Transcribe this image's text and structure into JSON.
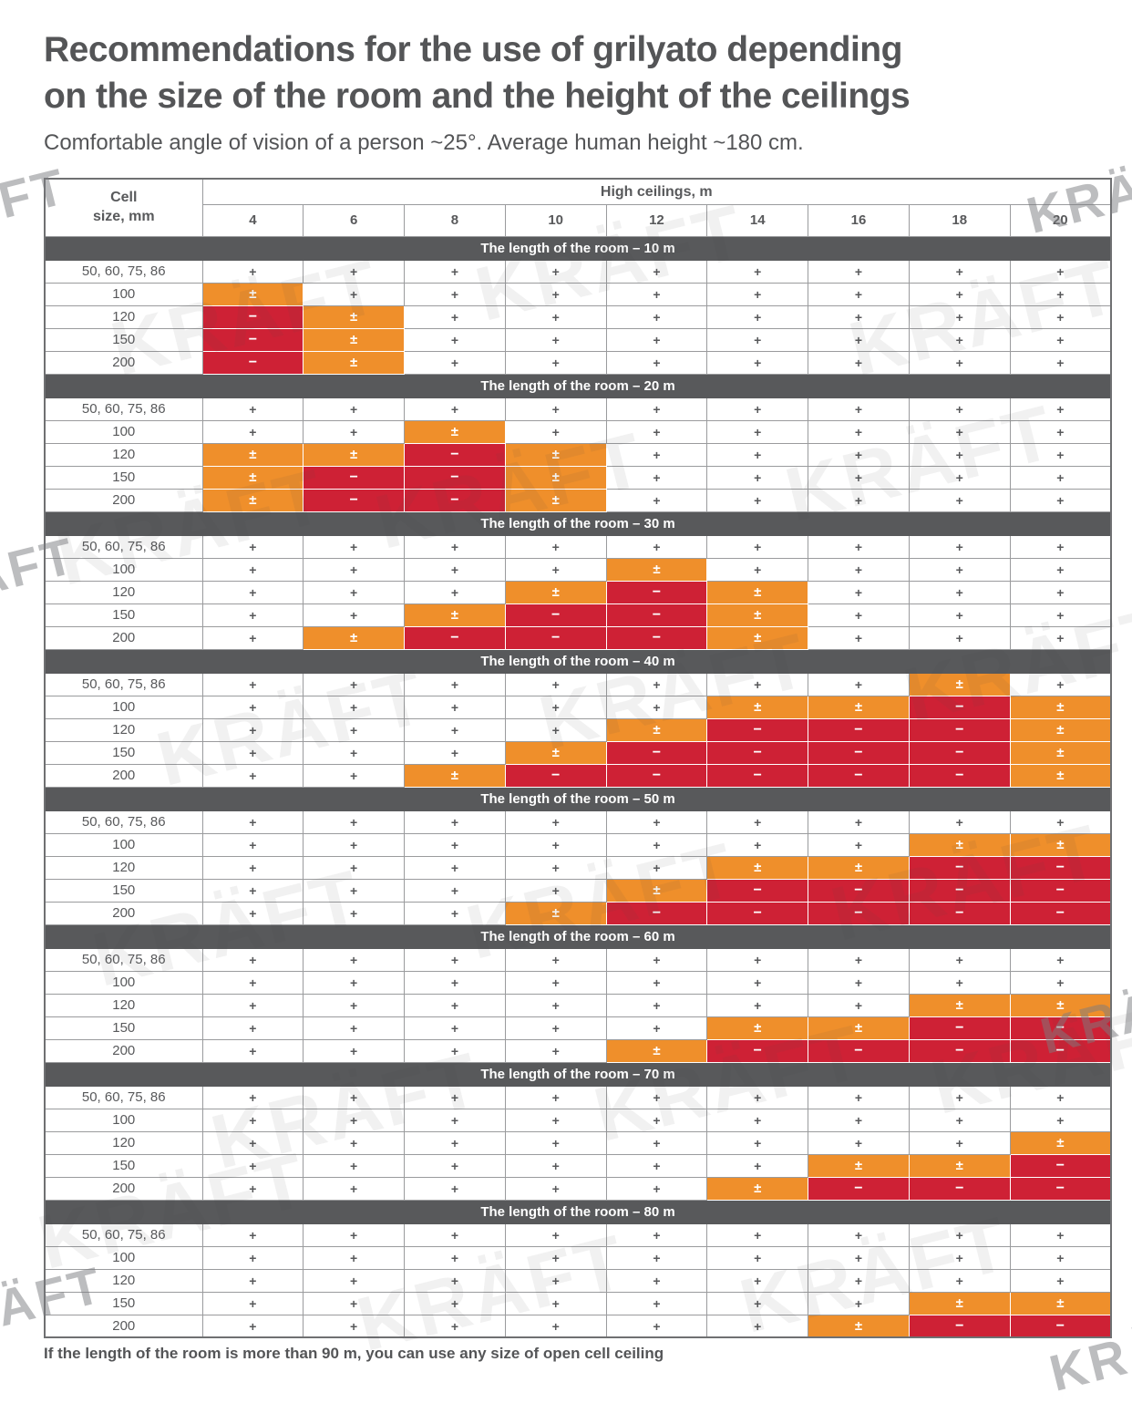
{
  "page": {
    "title_line1": "Recommendations for the use of grilyato depending",
    "title_line2": "on the size of the room and the height of the ceilings",
    "subtitle": "Comfortable angle of vision of a person ~25°. Average human height ~180 cm.",
    "footer_note": "If the length of the room is more than 90 m, you can use any size of open cell ceiling",
    "watermark_text": "KRÄFT"
  },
  "colors": {
    "text": "#58595b",
    "section_header_bg": "#58595b",
    "plus_minus_bg": "#ef8f2b",
    "minus_bg": "#ce2135",
    "symbol_white": "#ffffff"
  },
  "table": {
    "corner_line1": "Cell",
    "corner_line2": "size, mm",
    "group_header": "High ceilings, m",
    "columns": [
      "4",
      "6",
      "8",
      "10",
      "12",
      "14",
      "16",
      "18",
      "20"
    ],
    "row_labels": [
      "50, 60, 75, 86",
      "100",
      "120",
      "150",
      "200"
    ],
    "sections": [
      {
        "title": "The length of the room – 10 m",
        "rows": [
          [
            "+",
            "+",
            "+",
            "+",
            "+",
            "+",
            "+",
            "+",
            "+"
          ],
          [
            "±",
            "+",
            "+",
            "+",
            "+",
            "+",
            "+",
            "+",
            "+"
          ],
          [
            "−",
            "±",
            "+",
            "+",
            "+",
            "+",
            "+",
            "+",
            "+"
          ],
          [
            "−",
            "±",
            "+",
            "+",
            "+",
            "+",
            "+",
            "+",
            "+"
          ],
          [
            "−",
            "±",
            "+",
            "+",
            "+",
            "+",
            "+",
            "+",
            "+"
          ]
        ]
      },
      {
        "title": "The length of the room – 20 m",
        "rows": [
          [
            "+",
            "+",
            "+",
            "+",
            "+",
            "+",
            "+",
            "+",
            "+"
          ],
          [
            "+",
            "+",
            "±",
            "+",
            "+",
            "+",
            "+",
            "+",
            "+"
          ],
          [
            "±",
            "±",
            "−",
            "±",
            "+",
            "+",
            "+",
            "+",
            "+"
          ],
          [
            "±",
            "−",
            "−",
            "±",
            "+",
            "+",
            "+",
            "+",
            "+"
          ],
          [
            "±",
            "−",
            "−",
            "±",
            "+",
            "+",
            "+",
            "+",
            "+"
          ]
        ]
      },
      {
        "title": "The length of the room – 30 m",
        "rows": [
          [
            "+",
            "+",
            "+",
            "+",
            "+",
            "+",
            "+",
            "+",
            "+"
          ],
          [
            "+",
            "+",
            "+",
            "+",
            "±",
            "+",
            "+",
            "+",
            "+"
          ],
          [
            "+",
            "+",
            "+",
            "±",
            "−",
            "±",
            "+",
            "+",
            "+"
          ],
          [
            "+",
            "+",
            "±",
            "−",
            "−",
            "±",
            "+",
            "+",
            "+"
          ],
          [
            "+",
            "±",
            "−",
            "−",
            "−",
            "±",
            "+",
            "+",
            "+"
          ]
        ]
      },
      {
        "title": "The length of the room – 40 m",
        "rows": [
          [
            "+",
            "+",
            "+",
            "+",
            "+",
            "+",
            "+",
            "±",
            "+"
          ],
          [
            "+",
            "+",
            "+",
            "+",
            "+",
            "±",
            "±",
            "−",
            "±"
          ],
          [
            "+",
            "+",
            "+",
            "+",
            "±",
            "−",
            "−",
            "−",
            "±"
          ],
          [
            "+",
            "+",
            "+",
            "±",
            "−",
            "−",
            "−",
            "−",
            "±"
          ],
          [
            "+",
            "+",
            "±",
            "−",
            "−",
            "−",
            "−",
            "−",
            "±"
          ]
        ]
      },
      {
        "title": "The length of the room – 50 m",
        "rows": [
          [
            "+",
            "+",
            "+",
            "+",
            "+",
            "+",
            "+",
            "+",
            "+"
          ],
          [
            "+",
            "+",
            "+",
            "+",
            "+",
            "+",
            "+",
            "±",
            "±"
          ],
          [
            "+",
            "+",
            "+",
            "+",
            "+",
            "±",
            "±",
            "−",
            "−"
          ],
          [
            "+",
            "+",
            "+",
            "+",
            "±",
            "−",
            "−",
            "−",
            "−"
          ],
          [
            "+",
            "+",
            "+",
            "±",
            "−",
            "−",
            "−",
            "−",
            "−"
          ]
        ]
      },
      {
        "title": "The length of the room – 60 m",
        "rows": [
          [
            "+",
            "+",
            "+",
            "+",
            "+",
            "+",
            "+",
            "+",
            "+"
          ],
          [
            "+",
            "+",
            "+",
            "+",
            "+",
            "+",
            "+",
            "+",
            "+"
          ],
          [
            "+",
            "+",
            "+",
            "+",
            "+",
            "+",
            "+",
            "±",
            "±"
          ],
          [
            "+",
            "+",
            "+",
            "+",
            "+",
            "±",
            "±",
            "−",
            "−"
          ],
          [
            "+",
            "+",
            "+",
            "+",
            "±",
            "−",
            "−",
            "−",
            "−"
          ]
        ]
      },
      {
        "title": "The length of the room – 70 m",
        "rows": [
          [
            "+",
            "+",
            "+",
            "+",
            "+",
            "+",
            "+",
            "+",
            "+"
          ],
          [
            "+",
            "+",
            "+",
            "+",
            "+",
            "+",
            "+",
            "+",
            "+"
          ],
          [
            "+",
            "+",
            "+",
            "+",
            "+",
            "+",
            "+",
            "+",
            "±"
          ],
          [
            "+",
            "+",
            "+",
            "+",
            "+",
            "+",
            "±",
            "±",
            "−"
          ],
          [
            "+",
            "+",
            "+",
            "+",
            "+",
            "±",
            "−",
            "−",
            "−"
          ]
        ]
      },
      {
        "title": "The length of the room – 80 m",
        "rows": [
          [
            "+",
            "+",
            "+",
            "+",
            "+",
            "+",
            "+",
            "+",
            "+"
          ],
          [
            "+",
            "+",
            "+",
            "+",
            "+",
            "+",
            "+",
            "+",
            "+"
          ],
          [
            "+",
            "+",
            "+",
            "+",
            "+",
            "+",
            "+",
            "+",
            "+"
          ],
          [
            "+",
            "+",
            "+",
            "+",
            "+",
            "+",
            "+",
            "±",
            "±"
          ],
          [
            "+",
            "+",
            "+",
            "+",
            "+",
            "+",
            "±",
            "−",
            "−"
          ]
        ]
      }
    ]
  }
}
